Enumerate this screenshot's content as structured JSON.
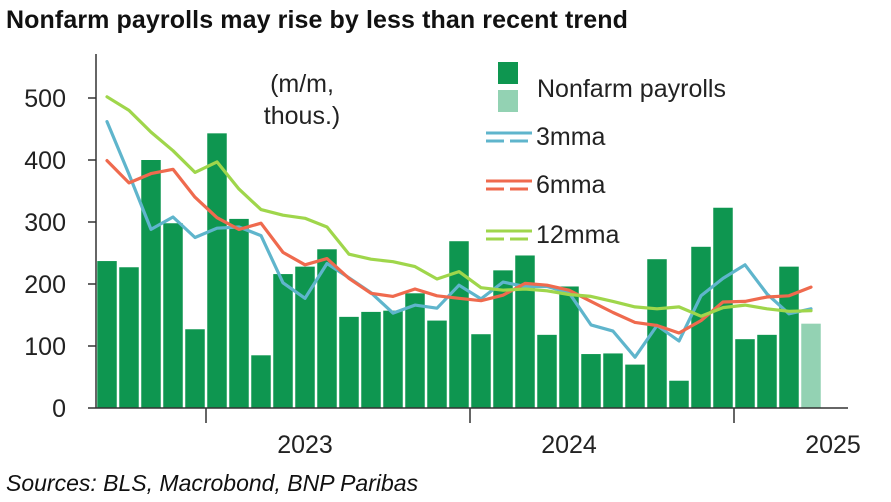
{
  "title": "Nonfarm payrolls may rise by less than recent trend",
  "source": "Sources: BLS, Macrobond, BNP Paribas",
  "chart_data": {
    "type": "bar",
    "annotation": [
      "(m/m,",
      "thous.)"
    ],
    "ylim": [
      0,
      550
    ],
    "yticks": [
      0,
      100,
      200,
      300,
      400,
      500
    ],
    "xticks": [
      {
        "label": "2023",
        "at_bar": 9.5
      },
      {
        "label": "2024",
        "at_bar": 21.5
      },
      {
        "label": "2025",
        "at_bar": 33.5
      }
    ],
    "x_boundary_bars": [
      5,
      17,
      29
    ],
    "legend": [
      "Nonfarm payrolls",
      "3mma",
      "6mma",
      "12mma"
    ],
    "colors": {
      "bar": "#0e9650",
      "forecast_bar": "#93d2b3",
      "mma3": "#5fb5cc",
      "mma6": "#ef6a4e",
      "mma12": "#9fd64b",
      "axis": "#333333"
    },
    "series": [
      {
        "name": "Nonfarm payrolls",
        "values": [
          237,
          227,
          400,
          298,
          127,
          443,
          305,
          85,
          216,
          228,
          256,
          147,
          155,
          157,
          185,
          141,
          269,
          119,
          222,
          246,
          118,
          196,
          87,
          88,
          70,
          240,
          44,
          260,
          323,
          111,
          118,
          228,
          136
        ],
        "forecast_from_index": 32
      },
      {
        "name": "3mma",
        "values": [
          462,
          377,
          288,
          308,
          275,
          290,
          292,
          278,
          202,
          177,
          233,
          210,
          186,
          153,
          166,
          161,
          198,
          176,
          203,
          196,
          196,
          186,
          134,
          124,
          82,
          133,
          108,
          181,
          209,
          231,
          184,
          152,
          160
        ]
      },
      {
        "name": "6mma",
        "values": [
          399,
          363,
          378,
          385,
          340,
          307,
          288,
          298,
          251,
          231,
          241,
          209,
          185,
          180,
          192,
          181,
          177,
          173,
          182,
          201,
          198,
          190,
          172,
          154,
          138,
          133,
          121,
          141,
          171,
          172,
          179,
          181,
          195
        ]
      },
      {
        "name": "12mma",
        "values": [
          502,
          480,
          445,
          415,
          380,
          397,
          353,
          320,
          311,
          306,
          292,
          248,
          240,
          236,
          228,
          208,
          220,
          194,
          190,
          192,
          189,
          183,
          180,
          172,
          163,
          160,
          163,
          148,
          162,
          166,
          160,
          156,
          157
        ]
      }
    ]
  }
}
